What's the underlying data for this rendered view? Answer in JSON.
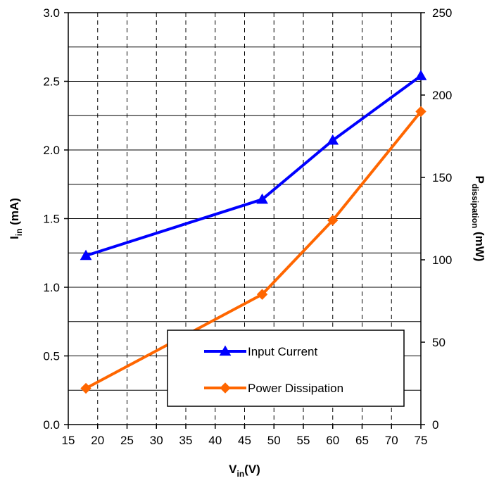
{
  "chart_data": {
    "type": "line",
    "title": "",
    "xlabel": {
      "main": "V",
      "sub": "in",
      "suffix": "(V)"
    },
    "ylabel_left": {
      "main": "I",
      "sub": "in",
      "suffix": " (mA)"
    },
    "ylabel_right": {
      "main": "P",
      "sub": "dissipation",
      "suffix": " (mW)"
    },
    "xlim": [
      15,
      75
    ],
    "ylim_left": [
      0,
      3
    ],
    "ylim_right": [
      0,
      250
    ],
    "x_ticks": [
      "15",
      "20",
      "25",
      "30",
      "35",
      "40",
      "45",
      "50",
      "55",
      "60",
      "65",
      "70",
      "75"
    ],
    "y_left_ticks": [
      "0.0",
      "0.5",
      "1.0",
      "1.5",
      "2.0",
      "2.5",
      "3.0"
    ],
    "y_right_ticks": [
      "0",
      "50",
      "100",
      "150",
      "200",
      "250"
    ],
    "grid": {
      "vertical": "dashed",
      "horizontal": "solid"
    },
    "legend_position": "bottom-right",
    "series": [
      {
        "name": "Input Current",
        "axis": "left",
        "marker": "triangle",
        "color": "#0000ff",
        "x": [
          18,
          48,
          60,
          75
        ],
        "y": [
          1.23,
          1.64,
          2.07,
          2.54
        ]
      },
      {
        "name": "Power Dissipation",
        "axis": "right",
        "marker": "diamond",
        "color": "#ff6600",
        "x": [
          18,
          48,
          60,
          75
        ],
        "y": [
          22,
          79,
          124,
          190
        ]
      }
    ]
  }
}
